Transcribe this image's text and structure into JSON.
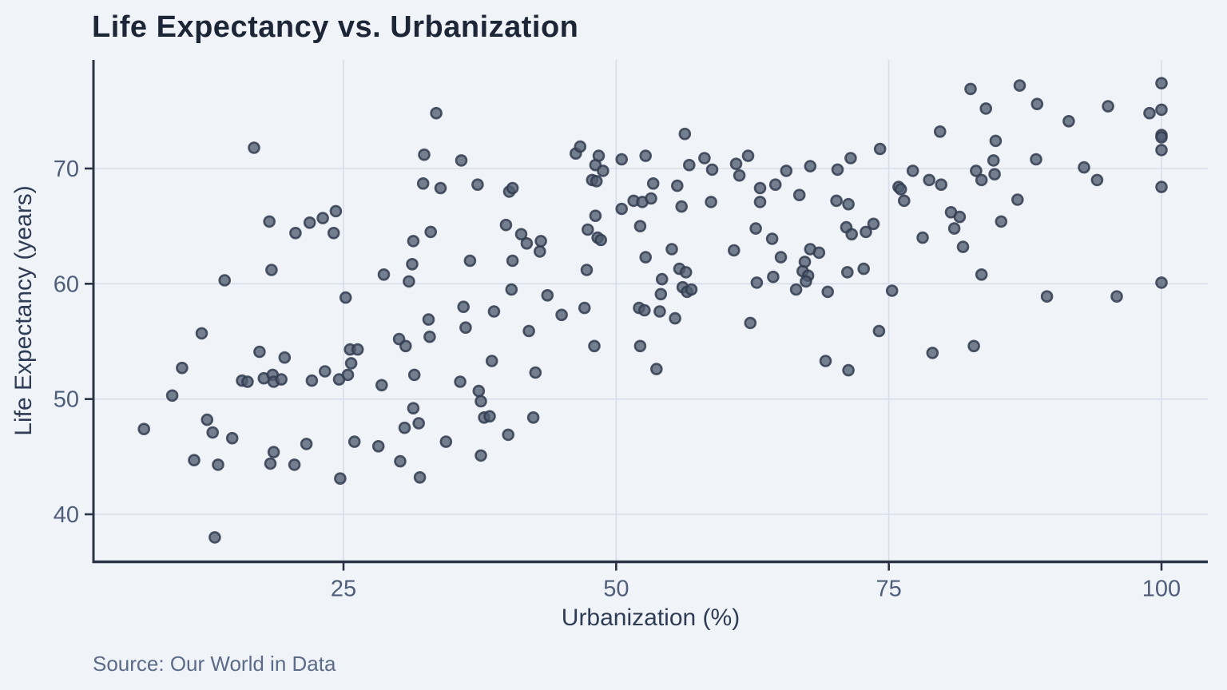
{
  "chart_data": {
    "type": "scatter",
    "title": "Life Expectancy vs. Urbanization",
    "xlabel": "Urbanization (%)",
    "ylabel": "Life Expectancy (years)",
    "source": "Source: Our World in Data",
    "x_ticks": [
      25,
      50,
      75,
      100
    ],
    "y_ticks": [
      40,
      50,
      60,
      70
    ],
    "xlim": [
      2,
      104.3
    ],
    "ylim": [
      35.9,
      79.4
    ],
    "grid": true,
    "legend": "none",
    "colors": {
      "background": "#f0f3f8",
      "grid": "#d8dee9",
      "axis": "#2b3447",
      "tick_label": "#4f5e79",
      "title": "#1d2636",
      "axis_title": "#2e3c55",
      "source_text": "#5c6b87",
      "point_fill": "#505c71",
      "point_stroke": "#323c50",
      "point_opacity": 0.78
    },
    "points": [
      [
        16.8,
        71.8
      ],
      [
        18.2,
        65.4
      ],
      [
        20.6,
        64.4
      ],
      [
        21.9,
        65.3
      ],
      [
        23.1,
        65.7
      ],
      [
        24.3,
        66.3
      ],
      [
        24.1,
        64.4
      ],
      [
        18.4,
        61.2
      ],
      [
        14.1,
        60.3
      ],
      [
        25.2,
        58.8
      ],
      [
        33.5,
        74.8
      ],
      [
        32.4,
        71.2
      ],
      [
        35.8,
        70.7
      ],
      [
        32.3,
        68.7
      ],
      [
        33.9,
        68.3
      ],
      [
        37.3,
        68.6
      ],
      [
        40.2,
        68.0
      ],
      [
        40.5,
        68.3
      ],
      [
        46.3,
        71.3
      ],
      [
        46.7,
        71.9
      ],
      [
        48.4,
        71.1
      ],
      [
        48.1,
        70.3
      ],
      [
        48.8,
        69.8
      ],
      [
        50.5,
        70.8
      ],
      [
        52.7,
        71.1
      ],
      [
        47.8,
        69.0
      ],
      [
        48.2,
        68.9
      ],
      [
        53.4,
        68.7
      ],
      [
        55.6,
        68.5
      ],
      [
        50.5,
        66.5
      ],
      [
        51.6,
        67.2
      ],
      [
        52.4,
        67.1
      ],
      [
        53.2,
        67.4
      ],
      [
        48.1,
        65.9
      ],
      [
        47.4,
        64.7
      ],
      [
        48.3,
        64.0
      ],
      [
        48.6,
        63.8
      ],
      [
        52.2,
        65.0
      ],
      [
        33.0,
        64.5
      ],
      [
        31.4,
        63.7
      ],
      [
        39.9,
        65.1
      ],
      [
        41.3,
        64.3
      ],
      [
        41.8,
        63.5
      ],
      [
        43.1,
        63.7
      ],
      [
        43.0,
        62.8
      ],
      [
        31.3,
        61.7
      ],
      [
        28.7,
        60.8
      ],
      [
        31.0,
        60.2
      ],
      [
        36.6,
        62.0
      ],
      [
        40.5,
        62.0
      ],
      [
        52.7,
        62.3
      ],
      [
        47.3,
        61.2
      ],
      [
        40.4,
        59.5
      ],
      [
        43.7,
        59.0
      ],
      [
        36.0,
        58.0
      ],
      [
        47.1,
        57.9
      ],
      [
        52.1,
        57.9
      ],
      [
        52.6,
        57.7
      ],
      [
        38.8,
        57.6
      ],
      [
        56.3,
        73.0
      ],
      [
        56.7,
        70.3
      ],
      [
        58.1,
        70.9
      ],
      [
        58.8,
        69.9
      ],
      [
        61.0,
        70.4
      ],
      [
        61.3,
        69.4
      ],
      [
        62.1,
        71.1
      ],
      [
        65.6,
        69.8
      ],
      [
        67.8,
        70.2
      ],
      [
        70.3,
        69.9
      ],
      [
        71.5,
        70.9
      ],
      [
        74.2,
        71.7
      ],
      [
        77.2,
        69.8
      ],
      [
        78.7,
        69.0
      ],
      [
        56.0,
        66.7
      ],
      [
        58.7,
        67.1
      ],
      [
        63.2,
        68.3
      ],
      [
        63.2,
        67.1
      ],
      [
        64.6,
        68.6
      ],
      [
        66.8,
        67.7
      ],
      [
        70.2,
        67.2
      ],
      [
        71.3,
        66.9
      ],
      [
        75.9,
        68.4
      ],
      [
        76.1,
        68.2
      ],
      [
        76.4,
        67.2
      ],
      [
        71.1,
        64.9
      ],
      [
        71.6,
        64.3
      ],
      [
        72.9,
        64.5
      ],
      [
        73.6,
        65.2
      ],
      [
        62.8,
        64.8
      ],
      [
        64.3,
        63.9
      ],
      [
        60.8,
        62.9
      ],
      [
        55.1,
        63.0
      ],
      [
        65.1,
        62.3
      ],
      [
        67.8,
        63.0
      ],
      [
        68.6,
        62.7
      ],
      [
        67.3,
        61.9
      ],
      [
        78.1,
        64.0
      ],
      [
        55.8,
        61.3
      ],
      [
        56.4,
        61.0
      ],
      [
        54.2,
        60.4
      ],
      [
        56.1,
        59.7
      ],
      [
        56.5,
        59.3
      ],
      [
        56.9,
        59.5
      ],
      [
        67.1,
        61.1
      ],
      [
        67.6,
        60.7
      ],
      [
        67.4,
        60.2
      ],
      [
        62.9,
        60.1
      ],
      [
        64.4,
        60.6
      ],
      [
        66.5,
        59.5
      ],
      [
        71.2,
        61.0
      ],
      [
        72.7,
        61.3
      ],
      [
        54.1,
        59.1
      ],
      [
        69.4,
        59.3
      ],
      [
        75.3,
        59.4
      ],
      [
        54.0,
        57.6
      ],
      [
        82.5,
        76.9
      ],
      [
        87.0,
        77.2
      ],
      [
        83.9,
        75.2
      ],
      [
        88.6,
        75.6
      ],
      [
        95.1,
        75.4
      ],
      [
        91.5,
        74.1
      ],
      [
        79.7,
        73.2
      ],
      [
        100,
        77.4
      ],
      [
        100,
        75.1
      ],
      [
        98.9,
        74.8
      ],
      [
        100,
        72.9
      ],
      [
        100,
        72.7
      ],
      [
        100,
        71.6
      ],
      [
        84.8,
        72.4
      ],
      [
        84.6,
        70.7
      ],
      [
        83.0,
        69.8
      ],
      [
        83.5,
        69.0
      ],
      [
        84.7,
        69.5
      ],
      [
        88.5,
        70.8
      ],
      [
        92.9,
        70.1
      ],
      [
        94.1,
        69.0
      ],
      [
        79.8,
        68.6
      ],
      [
        100,
        68.4
      ],
      [
        86.8,
        67.3
      ],
      [
        80.7,
        66.2
      ],
      [
        81.5,
        65.8
      ],
      [
        81.0,
        64.8
      ],
      [
        85.3,
        65.4
      ],
      [
        81.8,
        63.2
      ],
      [
        83.5,
        60.8
      ],
      [
        100,
        60.1
      ],
      [
        89.5,
        58.9
      ],
      [
        95.9,
        58.9
      ],
      [
        12.0,
        55.7
      ],
      [
        17.3,
        54.1
      ],
      [
        19.6,
        53.6
      ],
      [
        10.2,
        52.7
      ],
      [
        15.7,
        51.6
      ],
      [
        16.2,
        51.5
      ],
      [
        17.7,
        51.8
      ],
      [
        18.5,
        52.1
      ],
      [
        18.6,
        51.5
      ],
      [
        19.3,
        51.7
      ],
      [
        22.1,
        51.6
      ],
      [
        23.3,
        52.4
      ],
      [
        24.6,
        51.7
      ],
      [
        25.4,
        52.1
      ],
      [
        25.6,
        54.3
      ],
      [
        26.3,
        54.3
      ],
      [
        25.7,
        53.1
      ],
      [
        9.3,
        50.3
      ],
      [
        6.7,
        47.4
      ],
      [
        12.5,
        48.2
      ],
      [
        13.0,
        47.1
      ],
      [
        14.8,
        46.6
      ],
      [
        11.3,
        44.7
      ],
      [
        13.5,
        44.3
      ],
      [
        18.3,
        44.4
      ],
      [
        18.6,
        45.4
      ],
      [
        20.5,
        44.3
      ],
      [
        21.6,
        46.1
      ],
      [
        26.0,
        46.3
      ],
      [
        24.7,
        43.1
      ],
      [
        13.2,
        38.0
      ],
      [
        32.8,
        56.9
      ],
      [
        30.1,
        55.2
      ],
      [
        30.7,
        54.6
      ],
      [
        32.9,
        55.4
      ],
      [
        36.2,
        56.2
      ],
      [
        42.0,
        55.9
      ],
      [
        48.0,
        54.6
      ],
      [
        52.2,
        54.6
      ],
      [
        38.6,
        53.3
      ],
      [
        42.6,
        52.3
      ],
      [
        31.5,
        52.1
      ],
      [
        35.7,
        51.5
      ],
      [
        28.5,
        51.2
      ],
      [
        37.4,
        50.7
      ],
      [
        37.6,
        49.8
      ],
      [
        31.4,
        49.2
      ],
      [
        31.9,
        47.9
      ],
      [
        30.6,
        47.5
      ],
      [
        37.9,
        48.4
      ],
      [
        38.4,
        48.5
      ],
      [
        42.4,
        48.4
      ],
      [
        40.1,
        46.9
      ],
      [
        34.4,
        46.3
      ],
      [
        28.2,
        45.9
      ],
      [
        37.6,
        45.1
      ],
      [
        30.2,
        44.6
      ],
      [
        32.0,
        43.2
      ],
      [
        45.0,
        57.3
      ],
      [
        55.4,
        57.0
      ],
      [
        62.3,
        56.6
      ],
      [
        74.1,
        55.9
      ],
      [
        69.2,
        53.3
      ],
      [
        71.3,
        52.5
      ],
      [
        53.7,
        52.6
      ],
      [
        79.0,
        54.0
      ],
      [
        82.8,
        54.6
      ]
    ]
  }
}
